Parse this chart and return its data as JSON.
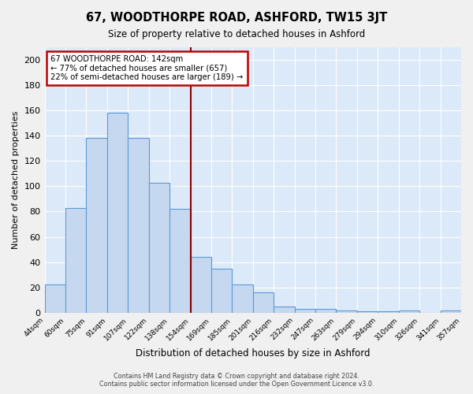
{
  "title": "67, WOODTHORPE ROAD, ASHFORD, TW15 3JT",
  "subtitle": "Size of property relative to detached houses in Ashford",
  "xlabel": "Distribution of detached houses by size in Ashford",
  "ylabel": "Number of detached properties",
  "categories": [
    "44sqm",
    "60sqm",
    "75sqm",
    "91sqm",
    "107sqm",
    "122sqm",
    "138sqm",
    "154sqm",
    "169sqm",
    "185sqm",
    "201sqm",
    "216sqm",
    "232sqm",
    "247sqm",
    "263sqm",
    "279sqm",
    "294sqm",
    "310sqm",
    "326sqm",
    "341sqm",
    "357sqm"
  ],
  "values": [
    22,
    83,
    138,
    158,
    138,
    103,
    82,
    44,
    35,
    22,
    16,
    5,
    3,
    3,
    2,
    1,
    1,
    2,
    0,
    2
  ],
  "bar_color": "#c5d8f0",
  "bar_edge_color": "#5b9bd5",
  "vline_color": "#8b0000",
  "vline_x": 7.0,
  "annotation_text": "67 WOODTHORPE ROAD: 142sqm\n← 77% of detached houses are smaller (657)\n22% of semi-detached houses are larger (189) →",
  "annotation_box_facecolor": "#ffffff",
  "annotation_box_edgecolor": "#c00000",
  "ylim": [
    0,
    210
  ],
  "yticks": [
    0,
    20,
    40,
    60,
    80,
    100,
    120,
    140,
    160,
    180,
    200
  ],
  "background_color": "#dce9f8",
  "grid_color": "#ffffff",
  "footer_line1": "Contains HM Land Registry data © Crown copyright and database right 2024.",
  "footer_line2": "Contains public sector information licensed under the Open Government Licence v3.0."
}
